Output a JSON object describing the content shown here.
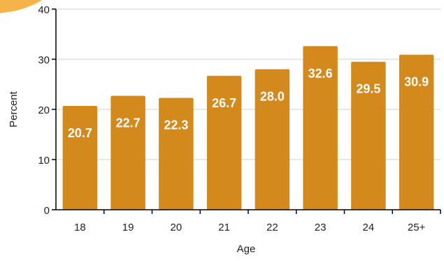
{
  "colors": {
    "bar": "#d4891c",
    "bar_label": "#ffffff",
    "grid": "#d9d9d9",
    "axis": "#000000",
    "corner_accent": "#f5b44a"
  },
  "chart_data": {
    "type": "bar",
    "categories": [
      "18",
      "19",
      "20",
      "21",
      "22",
      "23",
      "24",
      "25+"
    ],
    "values": [
      20.7,
      22.7,
      22.3,
      26.7,
      28.0,
      32.6,
      29.5,
      30.9
    ],
    "value_labels": [
      "20.7",
      "22.7",
      "22.3",
      "26.7",
      "28.0",
      "32.6",
      "29.5",
      "30.9"
    ],
    "xlabel": "Age",
    "ylabel": "Percent",
    "ylim": [
      0,
      40
    ],
    "yticks": [
      "0",
      "10",
      "20",
      "30",
      "40"
    ],
    "grid": true,
    "legend": "none"
  }
}
